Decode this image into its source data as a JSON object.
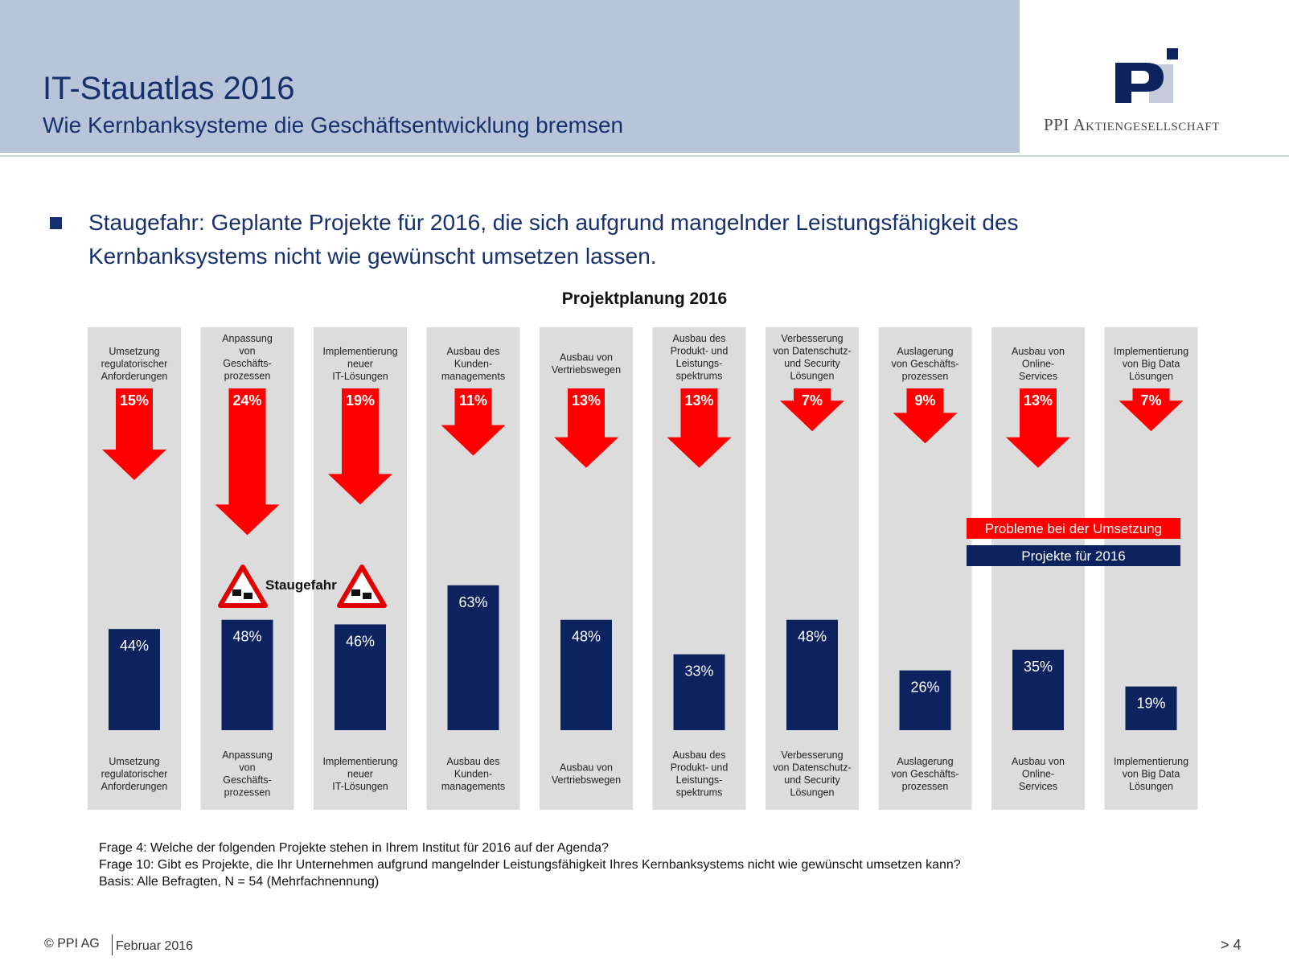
{
  "header": {
    "title": "IT-Stauatlas 2016",
    "subtitle": "Wie Kernbanksysteme die Geschäftsentwicklung bremsen",
    "logo_text": "PPI Aktiengesellschaft"
  },
  "bullet": "Staugefahr: Geplante Projekte für 2016, die sich aufgrund mangelnder Leistungsfähigkeit des Kernbanksystems nicht wie gewünscht umsetzen lassen.",
  "chart_data": {
    "type": "bar",
    "title": "Projektplanung 2016",
    "categories": [
      [
        "Umsetzung",
        "regulatorischer",
        "Anforderungen"
      ],
      [
        "Anpassung",
        "von",
        "Geschäfts-",
        "prozessen"
      ],
      [
        "Implementierung",
        "neuer",
        "IT-Lösungen"
      ],
      [
        "Ausbau des",
        "Kunden-",
        "managements"
      ],
      [
        "Ausbau von",
        "Vertriebswegen"
      ],
      [
        "Ausbau des",
        "Produkt- und",
        "Leistungs-",
        "spektrums"
      ],
      [
        "Verbesserung",
        "von Datenschutz-",
        "und Security",
        "Lösungen"
      ],
      [
        "Auslagerung",
        "von Geschäfts-",
        "prozessen"
      ],
      [
        "Ausbau von",
        "Online-",
        "Services"
      ],
      [
        "Implementierung",
        "von Big Data",
        "Lösungen"
      ]
    ],
    "series": [
      {
        "name": "Probleme bei der Umsetzung",
        "color": "#ff0000",
        "values": [
          15,
          24,
          19,
          11,
          13,
          13,
          7,
          9,
          13,
          7
        ]
      },
      {
        "name": "Projekte für 2016",
        "color": "#0d2360",
        "values": [
          44,
          48,
          46,
          63,
          48,
          33,
          48,
          26,
          35,
          19
        ]
      }
    ],
    "annotation": "Staugefahr",
    "legend_position": "right",
    "value_suffix": "%"
  },
  "notes": [
    "Frage 4: Welche der folgenden Projekte stehen in Ihrem Institut für 2016 auf der Agenda?",
    "Frage 10: Gibt es Projekte, die Ihr Unternehmen aufgrund mangelnder Leistungsfähigkeit Ihres Kernbanksystems nicht wie gewünscht umsetzen kann?",
    "Basis: Alle Befragten, N = 54 (Mehrfachnennung)"
  ],
  "footer": {
    "copyright": "© PPI AG",
    "date": "Februar 2016",
    "page": "> 4"
  }
}
